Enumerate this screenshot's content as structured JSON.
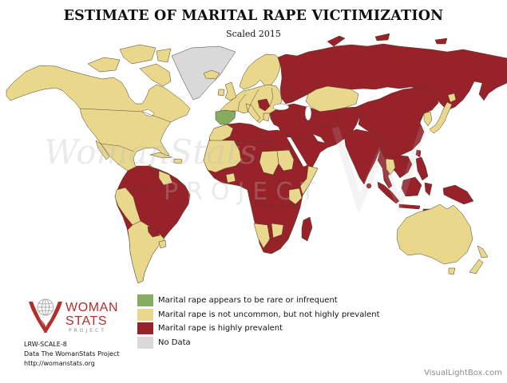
{
  "title": "ESTIMATE OF MARITAL RAPE VICTIMIZATION",
  "subtitle": "Scaled 2015",
  "legend": [
    {
      "label": "Marital rape appears to be rare or infrequent",
      "color": "#86ad5f"
    },
    {
      "label": "Marital rape is not uncommon, but not highly prevalent",
      "color": "#e9d88b"
    },
    {
      "label": "Marital rape is highly prevalent",
      "color": "#98222a"
    },
    {
      "label": "No Data",
      "color": "#d9d9d9"
    }
  ],
  "map": {
    "border_color": "#4b3a2a",
    "ocean_color": "#ffffff"
  },
  "watermark": {
    "word1": "WomanStats",
    "word2": "PROJECT",
    "color": "#bdbdbd"
  },
  "logo": {
    "word1": "WOMAN",
    "word2": "STATS",
    "word3": "PROJECT",
    "color": "#b1302e",
    "globe_color": "#9a9a9a"
  },
  "credits": {
    "code": "LRW-SCALE-8",
    "source": "Data The WomanStats Project",
    "url": "http://womanstats.org"
  },
  "site_credit": "VisualLightBox.com"
}
